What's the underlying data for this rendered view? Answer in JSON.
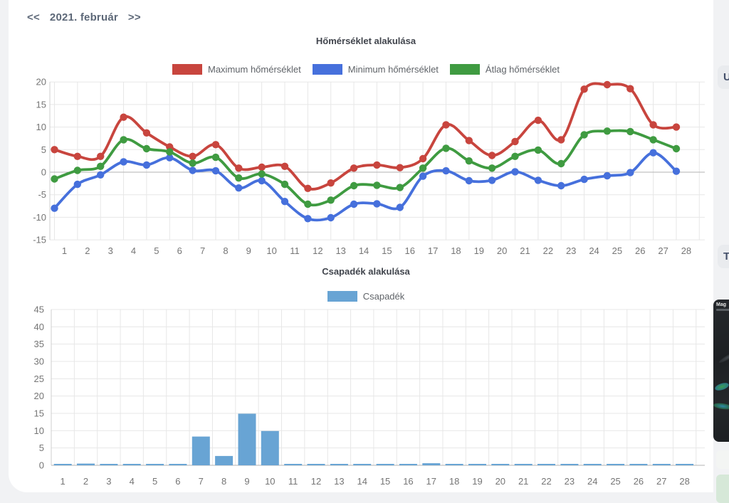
{
  "nav": {
    "prev_label": "<<",
    "month_label": "2021. február",
    "next_label": ">>"
  },
  "right_rail": {
    "top_button_label": "U",
    "bottom_button_label": "T",
    "thumbnail_text": "Mag"
  },
  "colors": {
    "max_temp": "#c8453e",
    "min_temp": "#4670dc",
    "avg_temp": "#3f9b41",
    "precip_bar": "#68a4d4",
    "grid_light": "#e7e7e7",
    "grid_zero": "#b3b3b3",
    "axis_line": "#cfcfcf"
  },
  "chart_data": [
    {
      "type": "line",
      "title": "Hőmérséklet alakulása",
      "categories": [
        1,
        2,
        3,
        4,
        5,
        6,
        7,
        8,
        9,
        10,
        11,
        12,
        13,
        14,
        15,
        16,
        17,
        18,
        19,
        20,
        21,
        22,
        23,
        24,
        25,
        26,
        27,
        28
      ],
      "series": [
        {
          "name": "Maximum hőmérséklet",
          "color": "#c8453e",
          "values": [
            5,
            3.5,
            3.5,
            12.2,
            8.7,
            5.6,
            3.5,
            6.1,
            0.9,
            1.1,
            1.3,
            -3.6,
            -2.4,
            0.9,
            1.6,
            1,
            3,
            10.5,
            7,
            3.7,
            6.8,
            11.5,
            7.2,
            18.4,
            19.4,
            18.5,
            10.5,
            10
          ]
        },
        {
          "name": "Minimum hőmérséklet",
          "color": "#4670dc",
          "values": [
            -8,
            -2.7,
            -0.6,
            2.3,
            1.6,
            3.2,
            0.4,
            0.3,
            -3.5,
            -1.9,
            -6.5,
            -10.3,
            -10.1,
            -7.1,
            -7,
            -7.8,
            -0.9,
            0.3,
            -1.9,
            -1.8,
            0.1,
            -1.8,
            -3,
            -1.6,
            -0.8,
            -0.1,
            4.3,
            0.2
          ]
        },
        {
          "name": "Átlag hőmérséklet",
          "color": "#3f9b41",
          "values": [
            -1.5,
            0.4,
            1.3,
            7.2,
            5.2,
            4.5,
            2,
            3.3,
            -1.3,
            -0.4,
            -2.7,
            -7.1,
            -6.2,
            -3,
            -2.9,
            -3.4,
            0.9,
            5.3,
            2.5,
            0.9,
            3.5,
            4.9,
            1.9,
            8.3,
            9.1,
            9,
            7.2,
            5.2
          ]
        }
      ],
      "ylim": [
        -15,
        20
      ],
      "yticks": [
        20,
        15,
        10,
        5,
        0,
        -5,
        -10,
        -15
      ],
      "grid": true,
      "legend_position": "top"
    },
    {
      "type": "bar",
      "title": "Csapadék alakulása",
      "categories": [
        1,
        2,
        3,
        4,
        5,
        6,
        7,
        8,
        9,
        10,
        11,
        12,
        13,
        14,
        15,
        16,
        17,
        18,
        19,
        20,
        21,
        22,
        23,
        24,
        25,
        26,
        27,
        28
      ],
      "series": [
        {
          "name": "Csapadék",
          "color": "#68a4d4",
          "values": [
            0.1,
            0.5,
            0.1,
            0.1,
            0.1,
            0.1,
            8.3,
            2.7,
            14.9,
            9.9,
            0.1,
            0.1,
            0.1,
            0.1,
            0.1,
            0.1,
            0.6,
            0.1,
            0.2,
            0.1,
            0.1,
            0.1,
            0.1,
            0.1,
            0.1,
            0.1,
            0.1,
            0.1
          ]
        }
      ],
      "ylim": [
        0,
        45
      ],
      "yticks": [
        45,
        40,
        35,
        30,
        25,
        20,
        15,
        10,
        5,
        0
      ],
      "grid": true,
      "legend_position": "top"
    }
  ]
}
